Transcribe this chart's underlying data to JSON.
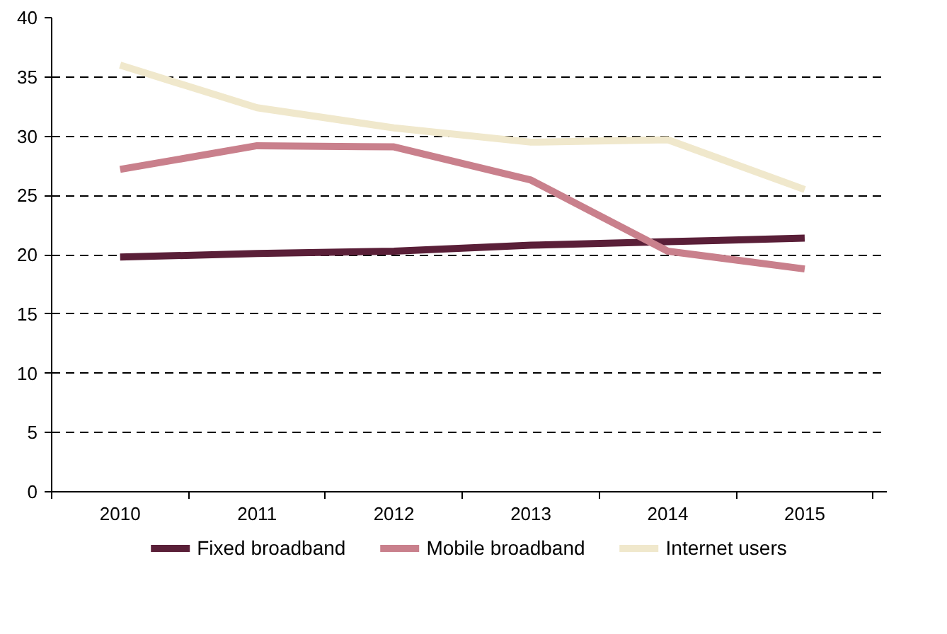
{
  "chart_data": {
    "type": "line",
    "categories": [
      "2010",
      "2011",
      "2012",
      "2013",
      "2014",
      "2015"
    ],
    "series": [
      {
        "name": "Fixed broadband",
        "color": "#5a1f38",
        "values": [
          19.8,
          20.1,
          20.3,
          20.8,
          21.1,
          21.4
        ]
      },
      {
        "name": "Mobile broadband",
        "color": "#c9808c",
        "values": [
          27.2,
          29.2,
          29.1,
          26.3,
          20.3,
          18.8
        ]
      },
      {
        "name": "Internet users",
        "color": "#f0e8cc",
        "values": [
          36.0,
          32.4,
          30.7,
          29.5,
          29.7,
          25.5
        ]
      }
    ],
    "ylim": [
      0,
      40
    ],
    "yticks": [
      0,
      5,
      10,
      15,
      20,
      25,
      30,
      35,
      40
    ],
    "grid": "y",
    "legend": "bottom",
    "marker": "none",
    "line_style": "solid"
  }
}
